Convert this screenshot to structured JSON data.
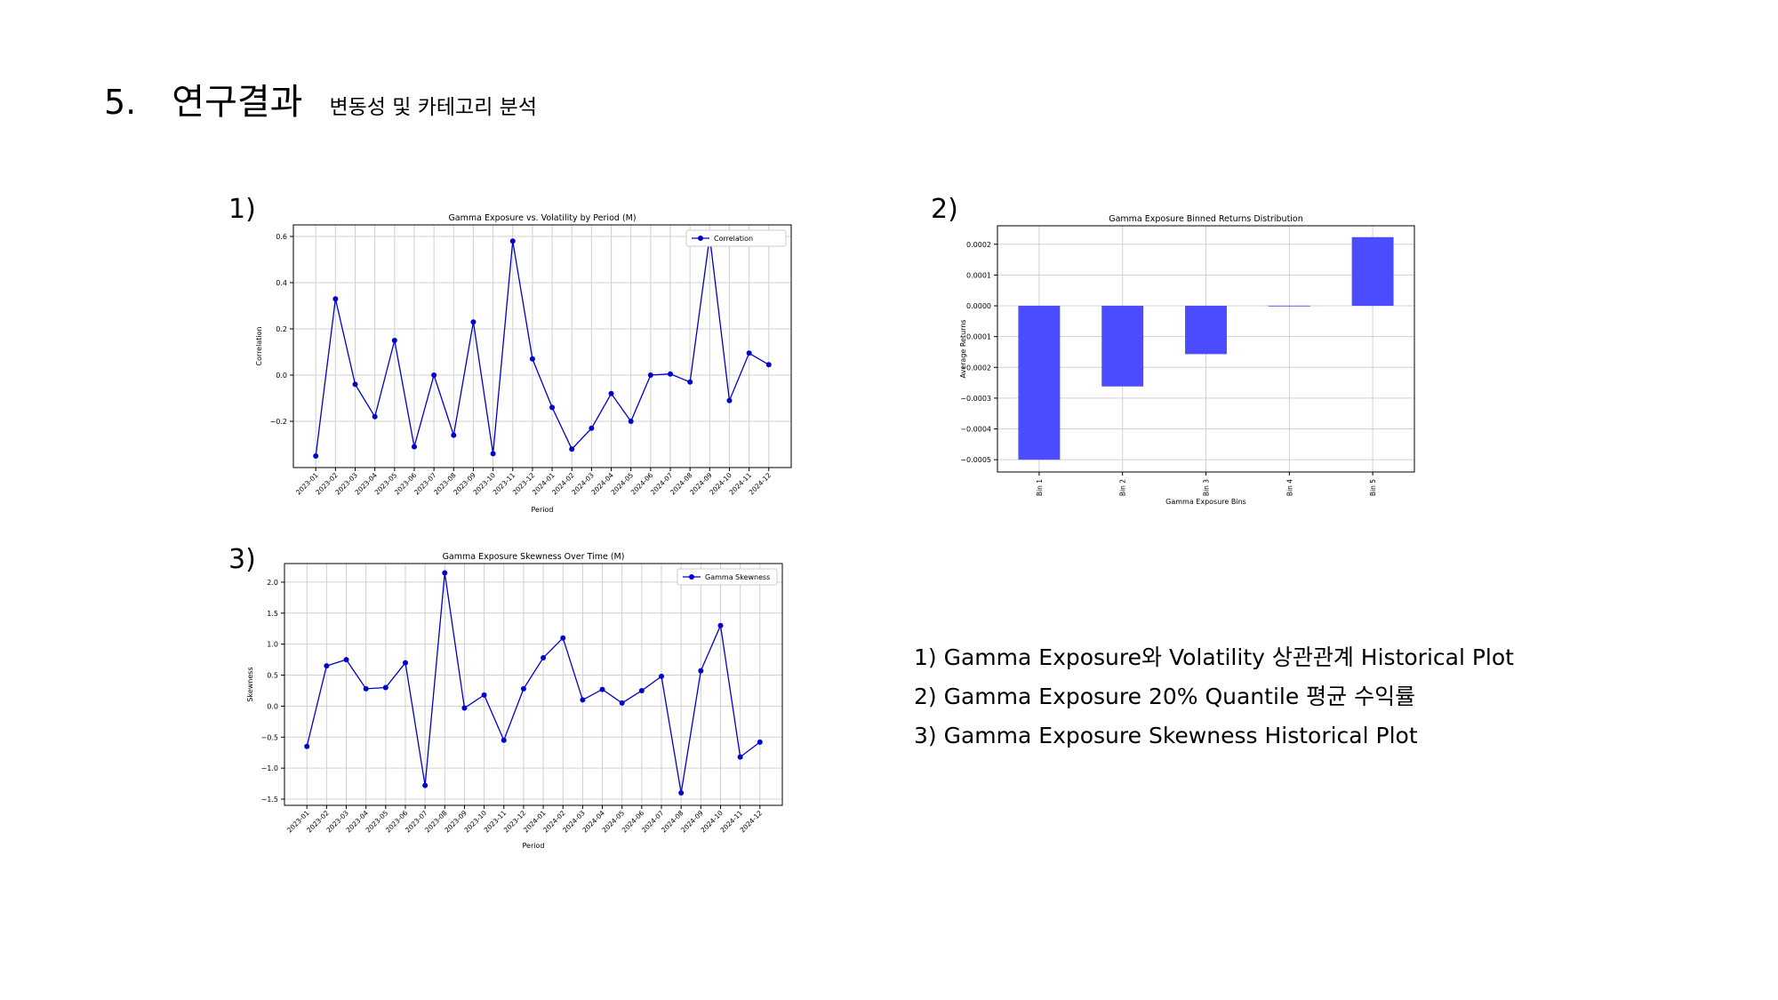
{
  "slide": {
    "number": "5.",
    "title": "연구결과",
    "subtitle": "변동성 및 카테고리 분석"
  },
  "panel_labels": [
    "1)",
    "2)",
    "3)"
  ],
  "notes": [
    "1) Gamma Exposure와 Volatility 상관관계 Historical Plot",
    "2) Gamma Exposure 20% Quantile 평균 수익률",
    "3) Gamma Exposure Skewness Historical Plot"
  ],
  "colors": {
    "line": "#0000cc",
    "bar": "#4b4bff",
    "grid": "#d0d0d0"
  },
  "chart_data": [
    {
      "type": "line",
      "title": "Gamma Exposure vs. Volatility by Period (M)",
      "xlabel": "Period",
      "ylabel": "Correlation",
      "legend": "top-right",
      "grid": true,
      "categories": [
        "2023-01",
        "2023-02",
        "2023-03",
        "2023-04",
        "2023-05",
        "2023-06",
        "2023-07",
        "2023-08",
        "2023-09",
        "2023-10",
        "2023-11",
        "2023-12",
        "2024-01",
        "2024-02",
        "2024-03",
        "2024-04",
        "2024-05",
        "2024-06",
        "2024-07",
        "2024-08",
        "2024-09",
        "2024-10",
        "2024-11",
        "2024-12"
      ],
      "ylim": [
        -0.4,
        0.65
      ],
      "yticks": [
        -0.2,
        0.0,
        0.2,
        0.4,
        0.6
      ],
      "ytick_labels": [
        "−0.2",
        "0.0",
        "0.2",
        "0.4",
        "0.6"
      ],
      "series": [
        {
          "name": "Correlation",
          "values": [
            -0.35,
            0.33,
            -0.04,
            -0.18,
            0.15,
            -0.31,
            0.0,
            -0.26,
            0.23,
            -0.34,
            0.58,
            0.07,
            -0.14,
            -0.32,
            -0.23,
            -0.08,
            -0.2,
            0.0,
            0.005,
            -0.03,
            0.6,
            -0.11,
            0.095,
            0.045
          ]
        }
      ]
    },
    {
      "type": "bar",
      "title": "Gamma Exposure Binned Returns Distribution",
      "xlabel": "Gamma Exposure Bins",
      "ylabel": "Average Returns",
      "grid": true,
      "categories": [
        "Bin 1",
        "Bin 2",
        "Bin 3",
        "Bin 4",
        "Bin 5"
      ],
      "ylim": [
        -0.00054,
        0.00026
      ],
      "yticks": [
        -0.0005,
        -0.0004,
        -0.0003,
        -0.0002,
        -0.0001,
        0.0,
        0.0001,
        0.0002
      ],
      "ytick_labels": [
        "−0.0005",
        "−0.0004",
        "−0.0003",
        "−0.0002",
        "−0.0001",
        "0.0000",
        "0.0001",
        "0.0002"
      ],
      "values": [
        -0.0005,
        -0.000262,
        -0.000157,
        3e-07,
        0.000223
      ]
    },
    {
      "type": "line",
      "title": "Gamma Exposure Skewness Over Time (M)",
      "xlabel": "Period",
      "ylabel": "Skewness",
      "legend": "top-right",
      "grid": true,
      "categories": [
        "2023-01",
        "2023-02",
        "2023-03",
        "2023-04",
        "2023-05",
        "2023-06",
        "2023-07",
        "2023-08",
        "2023-09",
        "2023-10",
        "2023-11",
        "2023-12",
        "2024-01",
        "2024-02",
        "2024-03",
        "2024-04",
        "2024-05",
        "2024-06",
        "2024-07",
        "2024-08",
        "2024-09",
        "2024-10",
        "2024-11",
        "2024-12"
      ],
      "ylim": [
        -1.6,
        2.3
      ],
      "yticks": [
        -1.5,
        -1.0,
        -0.5,
        0.0,
        0.5,
        1.0,
        1.5,
        2.0
      ],
      "ytick_labels": [
        "−1.5",
        "−1.0",
        "−0.5",
        "0.0",
        "0.5",
        "1.0",
        "1.5",
        "2.0"
      ],
      "series": [
        {
          "name": "Gamma Skewness",
          "values": [
            -0.65,
            0.65,
            0.75,
            0.28,
            0.3,
            0.7,
            -1.28,
            2.15,
            -0.03,
            0.18,
            -0.55,
            0.28,
            0.78,
            1.1,
            0.1,
            0.27,
            0.05,
            0.25,
            0.48,
            -1.4,
            0.57,
            1.3,
            -0.82,
            -0.58
          ]
        }
      ]
    }
  ]
}
